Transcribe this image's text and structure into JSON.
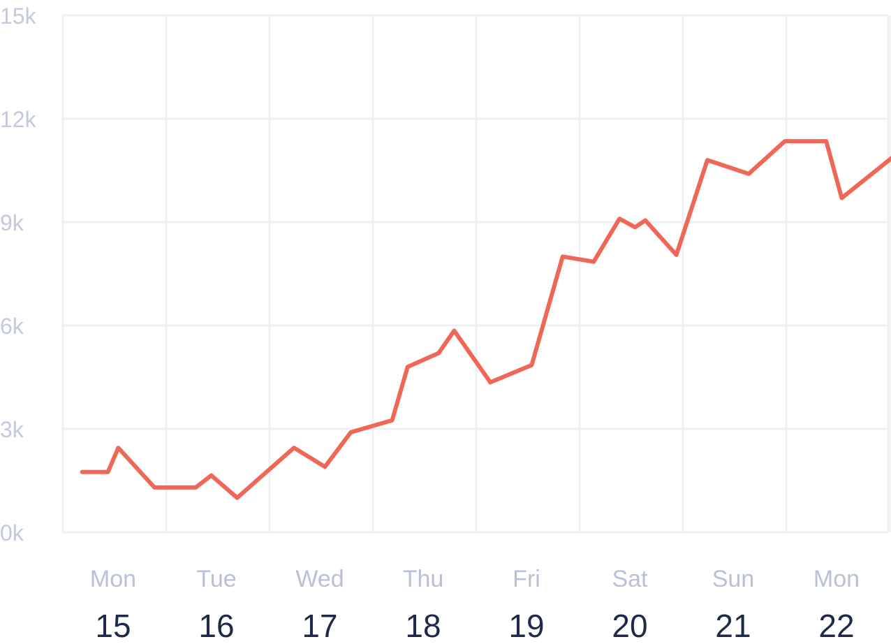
{
  "chart_data": {
    "type": "line",
    "title": "",
    "xlabel": "",
    "ylabel": "",
    "ylim": [
      0,
      15000
    ],
    "yticks": [
      0,
      3000,
      6000,
      9000,
      12000,
      15000
    ],
    "ytick_labels": [
      "0k",
      "3k",
      "6k",
      "9k",
      "12k",
      "15k"
    ],
    "xlim": [
      -0.35,
      7.6
    ],
    "grid": true,
    "legend": "none",
    "categories": [
      {
        "day": "Mon",
        "date": "15"
      },
      {
        "day": "Tue",
        "date": "16"
      },
      {
        "day": "Wed",
        "date": "17"
      },
      {
        "day": "Thu",
        "date": "18"
      },
      {
        "day": "Fri",
        "date": "19"
      },
      {
        "day": "Sat",
        "date": "20"
      },
      {
        "day": "Sun",
        "date": "21"
      },
      {
        "day": "Mon",
        "date": "22"
      }
    ],
    "series": [
      {
        "color": "#ef6757",
        "points": [
          [
            -0.3,
            1750
          ],
          [
            -0.05,
            1750
          ],
          [
            0.05,
            2450
          ],
          [
            0.4,
            1300
          ],
          [
            0.8,
            1300
          ],
          [
            0.95,
            1650
          ],
          [
            1.2,
            1000
          ],
          [
            1.75,
            2450
          ],
          [
            2.05,
            1900
          ],
          [
            2.3,
            2900
          ],
          [
            2.7,
            3250
          ],
          [
            2.85,
            4800
          ],
          [
            3.15,
            5200
          ],
          [
            3.3,
            5850
          ],
          [
            3.65,
            4350
          ],
          [
            4.05,
            4850
          ],
          [
            4.35,
            8000
          ],
          [
            4.65,
            7850
          ],
          [
            4.9,
            9100
          ],
          [
            5.05,
            8850
          ],
          [
            5.15,
            9050
          ],
          [
            5.45,
            8050
          ],
          [
            5.75,
            10800
          ],
          [
            6.15,
            10400
          ],
          [
            6.5,
            11350
          ],
          [
            6.9,
            11350
          ],
          [
            7.05,
            9700
          ],
          [
            7.55,
            10900
          ]
        ]
      }
    ]
  }
}
